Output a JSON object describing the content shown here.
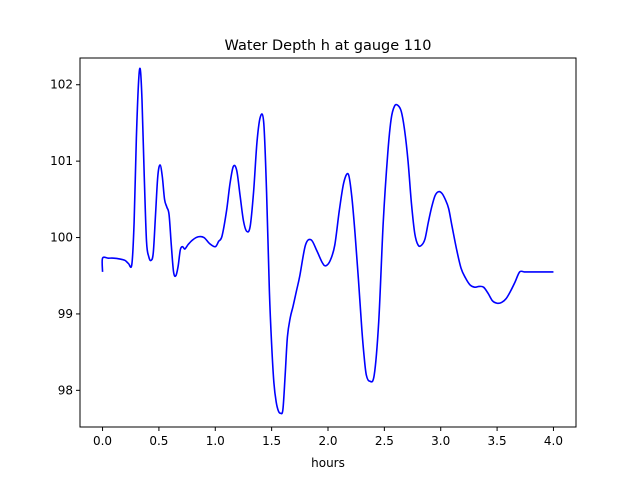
{
  "chart_data": {
    "type": "line",
    "title": "Water Depth h at gauge 110",
    "xlabel": "hours",
    "ylabel": "",
    "xlim": [
      -0.2,
      4.2
    ],
    "ylim": [
      97.52,
      102.35
    ],
    "xticks": [
      0.0,
      0.5,
      1.0,
      1.5,
      2.0,
      2.5,
      3.0,
      3.5,
      4.0
    ],
    "xtick_labels": [
      "0.0",
      "0.5",
      "1.0",
      "1.5",
      "2.0",
      "2.5",
      "3.0",
      "3.5",
      "4.0"
    ],
    "yticks": [
      98,
      99,
      100,
      101,
      102
    ],
    "ytick_labels": [
      "98",
      "99",
      "100",
      "101",
      "102"
    ],
    "grid": false,
    "line_color": "#0000ff",
    "series": [
      {
        "x": [
          0.0,
          0.0,
          0.05,
          0.1,
          0.15,
          0.2,
          0.23,
          0.26,
          0.28,
          0.3,
          0.32,
          0.335,
          0.35,
          0.37,
          0.39,
          0.41,
          0.43,
          0.45,
          0.47,
          0.49,
          0.51,
          0.53,
          0.55,
          0.57,
          0.59,
          0.61,
          0.63,
          0.65,
          0.67,
          0.69,
          0.71,
          0.73,
          0.76,
          0.8,
          0.85,
          0.9,
          0.95,
          1.0,
          1.03,
          1.06,
          1.1,
          1.13,
          1.16,
          1.19,
          1.22,
          1.25,
          1.28,
          1.31,
          1.34,
          1.37,
          1.4,
          1.43,
          1.455,
          1.48,
          1.5,
          1.52,
          1.54,
          1.56,
          1.58,
          1.6,
          1.62,
          1.64,
          1.665,
          1.69,
          1.72,
          1.75,
          1.8,
          1.85,
          1.9,
          1.95,
          1.98,
          2.02,
          2.06,
          2.1,
          2.14,
          2.18,
          2.21,
          2.24,
          2.27,
          2.3,
          2.32,
          2.34,
          2.37,
          2.41,
          2.45,
          2.49,
          2.53,
          2.56,
          2.59,
          2.62,
          2.65,
          2.68,
          2.71,
          2.74,
          2.77,
          2.8,
          2.83,
          2.86,
          2.89,
          2.92,
          2.95,
          2.98,
          3.01,
          3.04,
          3.07,
          3.1,
          3.14,
          3.18,
          3.22,
          3.26,
          3.3,
          3.34,
          3.38,
          3.42,
          3.46,
          3.5,
          3.54,
          3.58,
          3.62,
          3.66,
          3.7,
          3.74,
          3.78,
          3.82,
          3.86,
          3.9,
          3.94,
          3.97,
          4.0
        ],
        "values": [
          99.55,
          99.73,
          99.73,
          99.73,
          99.72,
          99.7,
          99.66,
          99.65,
          100.2,
          101.3,
          102.05,
          102.2,
          101.8,
          100.8,
          99.95,
          99.75,
          99.7,
          99.8,
          100.3,
          100.8,
          100.95,
          100.8,
          100.5,
          100.4,
          100.3,
          99.9,
          99.55,
          99.5,
          99.62,
          99.84,
          99.88,
          99.85,
          99.91,
          99.97,
          100.01,
          100.0,
          99.92,
          99.88,
          99.95,
          100.02,
          100.35,
          100.7,
          100.93,
          100.88,
          100.55,
          100.22,
          100.08,
          100.15,
          100.6,
          101.25,
          101.58,
          101.5,
          100.6,
          99.3,
          98.6,
          98.1,
          97.85,
          97.73,
          97.7,
          97.75,
          98.2,
          98.7,
          98.95,
          99.1,
          99.3,
          99.5,
          99.9,
          99.97,
          99.83,
          99.67,
          99.63,
          99.7,
          99.9,
          100.35,
          100.72,
          100.83,
          100.55,
          100.05,
          99.45,
          98.8,
          98.45,
          98.2,
          98.12,
          98.2,
          98.9,
          100.2,
          101.1,
          101.55,
          101.72,
          101.73,
          101.65,
          101.4,
          101.0,
          100.45,
          100.05,
          99.9,
          99.9,
          99.98,
          100.2,
          100.4,
          100.55,
          100.6,
          100.58,
          100.5,
          100.38,
          100.15,
          99.85,
          99.6,
          99.47,
          99.38,
          99.35,
          99.36,
          99.35,
          99.27,
          99.17,
          99.14,
          99.15,
          99.2,
          99.3,
          99.42,
          99.55,
          99.55,
          99.55,
          99.55,
          99.55,
          99.55,
          99.55,
          99.55,
          99.55
        ]
      }
    ]
  }
}
